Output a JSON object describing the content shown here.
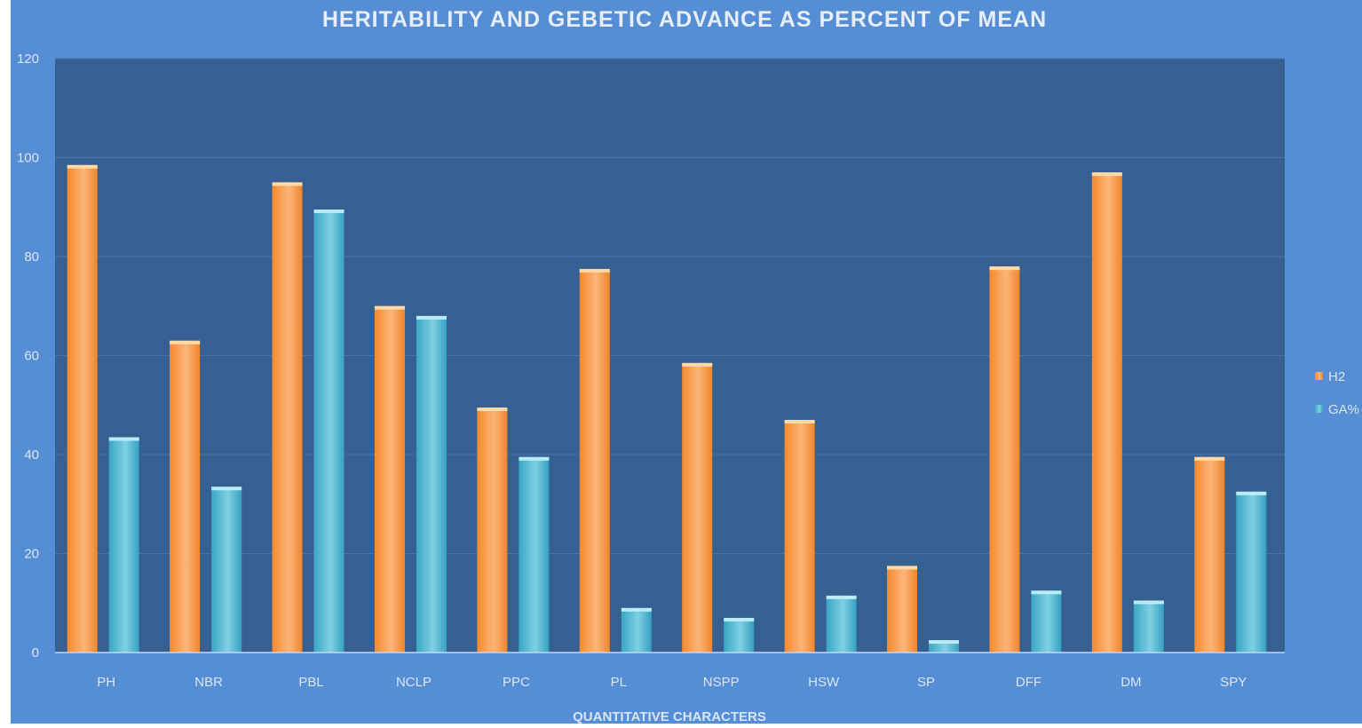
{
  "chart_data": {
    "type": "bar",
    "title": "HERITABILITY AND GEBETIC ADVANCE AS PERCENT OF MEAN",
    "xlabel": "QUANTITATIVE CHARACTERS",
    "ylabel": "",
    "ylim": [
      0,
      120
    ],
    "yticks": [
      0,
      20,
      40,
      60,
      80,
      100,
      120
    ],
    "grid": true,
    "legend_position": "right",
    "categories": [
      "PH",
      "NBR",
      "PBL",
      "NCLP",
      "PPC",
      "PL",
      "NSPP",
      "HSW",
      "SP",
      "DFF",
      "DM",
      "SPY"
    ],
    "series": [
      {
        "name": "H2",
        "color": "#f79646",
        "values": [
          98.5,
          63,
          95,
          70,
          49.5,
          77.5,
          58.5,
          47,
          17.5,
          78,
          97,
          39.5
        ]
      },
      {
        "name": "GA%",
        "color": "#4bacc6",
        "values": [
          43.5,
          33.5,
          89.5,
          68,
          39.5,
          9,
          7,
          11.5,
          2.5,
          12.5,
          10.5,
          32.5
        ]
      }
    ]
  },
  "colors": {
    "background": "#558ed5",
    "plot_area": "#376092",
    "text": "#dbe5f1",
    "title": "#e8eef8"
  }
}
